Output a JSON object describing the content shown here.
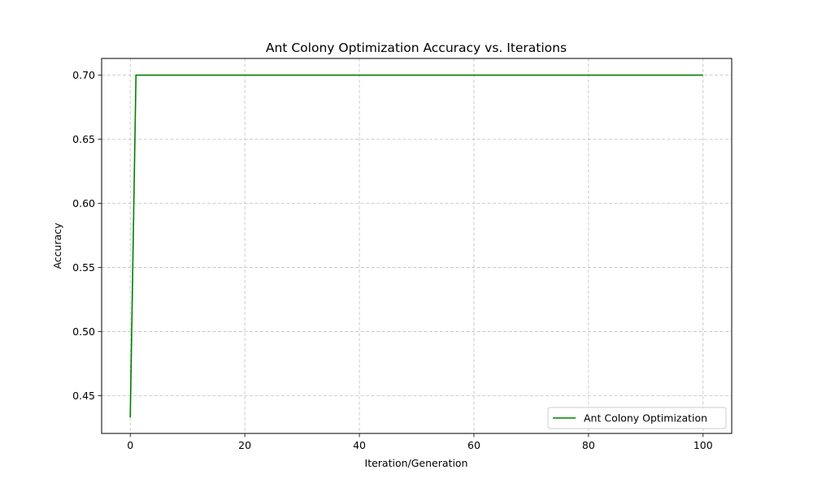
{
  "chart_data": {
    "type": "line",
    "title": "Ant Colony Optimization Accuracy vs. Iterations",
    "xlabel": "Iteration/Generation",
    "ylabel": "Accuracy",
    "xlim": [
      -5,
      105
    ],
    "ylim": [
      0.4205,
      0.713
    ],
    "xticks": [
      0,
      20,
      40,
      60,
      80,
      100
    ],
    "yticks": [
      0.45,
      0.5,
      0.55,
      0.6,
      0.65,
      0.7
    ],
    "xtick_labels": [
      "0",
      "20",
      "40",
      "60",
      "80",
      "100"
    ],
    "ytick_labels": [
      "0.45",
      "0.50",
      "0.55",
      "0.60",
      "0.65",
      "0.70"
    ],
    "grid": true,
    "legend_position": "bottom-right",
    "series": [
      {
        "name": "Ant Colony Optimization",
        "color": "#008000",
        "x": [
          0,
          1,
          2,
          3,
          4,
          5,
          6,
          7,
          8,
          9,
          10,
          11,
          12,
          13,
          14,
          15,
          16,
          17,
          18,
          19,
          20,
          21,
          22,
          23,
          24,
          25,
          26,
          27,
          28,
          29,
          30,
          31,
          32,
          33,
          34,
          35,
          36,
          37,
          38,
          39,
          40,
          41,
          42,
          43,
          44,
          45,
          46,
          47,
          48,
          49,
          50,
          51,
          52,
          53,
          54,
          55,
          56,
          57,
          58,
          59,
          60,
          61,
          62,
          63,
          64,
          65,
          66,
          67,
          68,
          69,
          70,
          71,
          72,
          73,
          74,
          75,
          76,
          77,
          78,
          79,
          80,
          81,
          82,
          83,
          84,
          85,
          86,
          87,
          88,
          89,
          90,
          91,
          92,
          93,
          94,
          95,
          96,
          97,
          98,
          99,
          100
        ],
        "y": [
          0.433,
          0.7,
          0.7,
          0.7,
          0.7,
          0.7,
          0.7,
          0.7,
          0.7,
          0.7,
          0.7,
          0.7,
          0.7,
          0.7,
          0.7,
          0.7,
          0.7,
          0.7,
          0.7,
          0.7,
          0.7,
          0.7,
          0.7,
          0.7,
          0.7,
          0.7,
          0.7,
          0.7,
          0.7,
          0.7,
          0.7,
          0.7,
          0.7,
          0.7,
          0.7,
          0.7,
          0.7,
          0.7,
          0.7,
          0.7,
          0.7,
          0.7,
          0.7,
          0.7,
          0.7,
          0.7,
          0.7,
          0.7,
          0.7,
          0.7,
          0.7,
          0.7,
          0.7,
          0.7,
          0.7,
          0.7,
          0.7,
          0.7,
          0.7,
          0.7,
          0.7,
          0.7,
          0.7,
          0.7,
          0.7,
          0.7,
          0.7,
          0.7,
          0.7,
          0.7,
          0.7,
          0.7,
          0.7,
          0.7,
          0.7,
          0.7,
          0.7,
          0.7,
          0.7,
          0.7,
          0.7,
          0.7,
          0.7,
          0.7,
          0.7,
          0.7,
          0.7,
          0.7,
          0.7,
          0.7,
          0.7,
          0.7,
          0.7,
          0.7,
          0.7,
          0.7,
          0.7,
          0.7,
          0.7,
          0.7,
          0.7
        ]
      }
    ]
  }
}
